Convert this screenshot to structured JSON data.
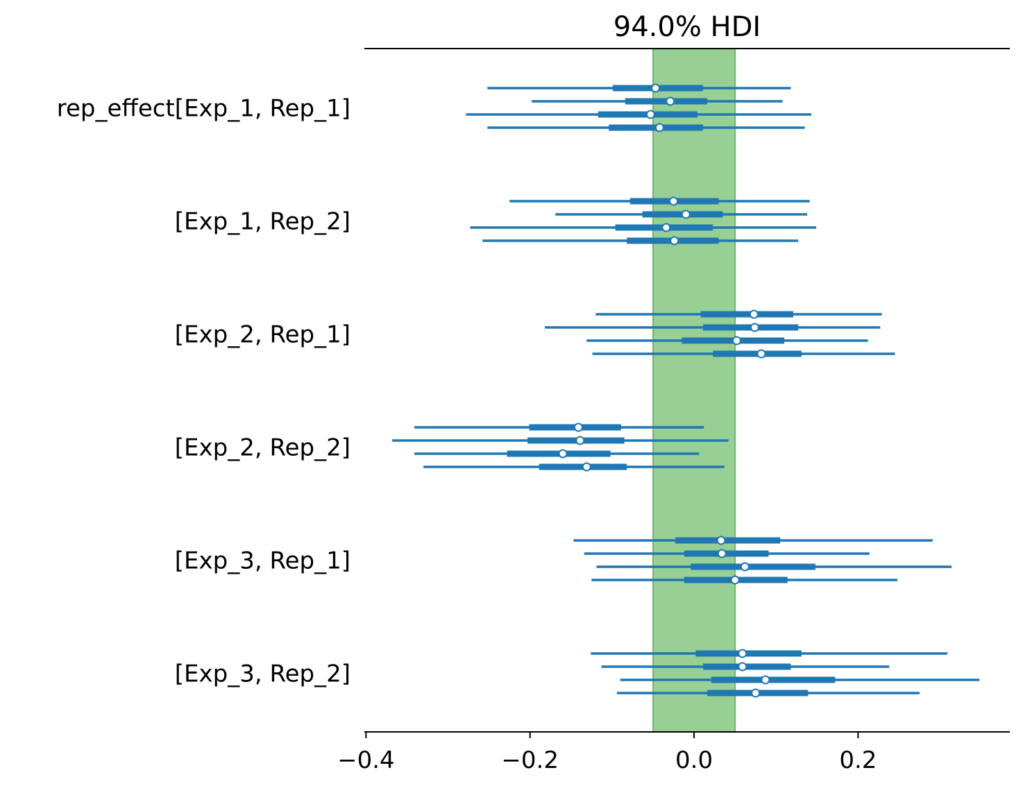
{
  "chart_data": {
    "type": "forest",
    "title": "94.0% HDI",
    "rope": [
      -0.05,
      0.05
    ],
    "xticks": [
      -0.4,
      -0.2,
      0.0,
      0.2
    ],
    "xtick_labels": [
      "−0.4",
      "−0.2",
      "0.0",
      "0.2"
    ],
    "xlim": [
      -0.402,
      0.385
    ],
    "colors": {
      "interval": "#1f77b4",
      "rope_fill": "#98cf94",
      "rope_edge": "#6fb86a",
      "point_fill": "#ffffff",
      "axis": "#000000"
    },
    "groups": [
      {
        "label": "rep_effect[Exp_1, Rep_1]",
        "chains": [
          {
            "mean": -0.047,
            "hdi94": [
              -0.252,
              0.118
            ],
            "iqr": [
              -0.099,
              0.011
            ]
          },
          {
            "mean": -0.029,
            "hdi94": [
              -0.198,
              0.108
            ],
            "iqr": [
              -0.084,
              0.016
            ]
          },
          {
            "mean": -0.053,
            "hdi94": [
              -0.278,
              0.143
            ],
            "iqr": [
              -0.117,
              0.004
            ]
          },
          {
            "mean": -0.042,
            "hdi94": [
              -0.252,
              0.135
            ],
            "iqr": [
              -0.104,
              0.011
            ]
          }
        ]
      },
      {
        "label": "[Exp_1, Rep_2]",
        "chains": [
          {
            "mean": -0.025,
            "hdi94": [
              -0.225,
              0.141
            ],
            "iqr": [
              -0.078,
              0.03
            ]
          },
          {
            "mean": -0.01,
            "hdi94": [
              -0.169,
              0.138
            ],
            "iqr": [
              -0.063,
              0.035
            ]
          },
          {
            "mean": -0.034,
            "hdi94": [
              -0.273,
              0.149
            ],
            "iqr": [
              -0.096,
              0.023
            ]
          },
          {
            "mean": -0.024,
            "hdi94": [
              -0.258,
              0.127
            ],
            "iqr": [
              -0.082,
              0.03
            ]
          }
        ]
      },
      {
        "label": "[Exp_2, Rep_1]",
        "chains": [
          {
            "mean": 0.073,
            "hdi94": [
              -0.12,
              0.229
            ],
            "iqr": [
              0.008,
              0.121
            ]
          },
          {
            "mean": 0.074,
            "hdi94": [
              -0.182,
              0.227
            ],
            "iqr": [
              0.011,
              0.127
            ]
          },
          {
            "mean": 0.052,
            "hdi94": [
              -0.131,
              0.212
            ],
            "iqr": [
              -0.015,
              0.11
            ]
          },
          {
            "mean": 0.082,
            "hdi94": [
              -0.124,
              0.245
            ],
            "iqr": [
              0.023,
              0.131
            ]
          }
        ]
      },
      {
        "label": "[Exp_2, Rep_2]",
        "chains": [
          {
            "mean": -0.141,
            "hdi94": [
              -0.341,
              0.012
            ],
            "iqr": [
              -0.201,
              -0.089
            ]
          },
          {
            "mean": -0.139,
            "hdi94": [
              -0.368,
              0.042
            ],
            "iqr": [
              -0.203,
              -0.085
            ]
          },
          {
            "mean": -0.16,
            "hdi94": [
              -0.341,
              0.006
            ],
            "iqr": [
              -0.228,
              -0.102
            ]
          },
          {
            "mean": -0.131,
            "hdi94": [
              -0.33,
              0.037
            ],
            "iqr": [
              -0.189,
              -0.082
            ]
          }
        ]
      },
      {
        "label": "[Exp_3, Rep_1]",
        "chains": [
          {
            "mean": 0.033,
            "hdi94": [
              -0.147,
              0.291
            ],
            "iqr": [
              -0.023,
              0.105
            ]
          },
          {
            "mean": 0.034,
            "hdi94": [
              -0.134,
              0.214
            ],
            "iqr": [
              -0.012,
              0.091
            ]
          },
          {
            "mean": 0.062,
            "hdi94": [
              -0.119,
              0.314
            ],
            "iqr": [
              -0.004,
              0.148
            ]
          },
          {
            "mean": 0.05,
            "hdi94": [
              -0.125,
              0.248
            ],
            "iqr": [
              -0.012,
              0.114
            ]
          }
        ]
      },
      {
        "label": "[Exp_3, Rep_2]",
        "chains": [
          {
            "mean": 0.059,
            "hdi94": [
              -0.126,
              0.309
            ],
            "iqr": [
              0.002,
              0.131
            ]
          },
          {
            "mean": 0.059,
            "hdi94": [
              -0.113,
              0.238
            ],
            "iqr": [
              0.011,
              0.118
            ]
          },
          {
            "mean": 0.087,
            "hdi94": [
              -0.09,
              0.348
            ],
            "iqr": [
              0.021,
              0.172
            ]
          },
          {
            "mean": 0.075,
            "hdi94": [
              -0.094,
              0.275
            ],
            "iqr": [
              0.016,
              0.139
            ]
          }
        ]
      }
    ]
  }
}
